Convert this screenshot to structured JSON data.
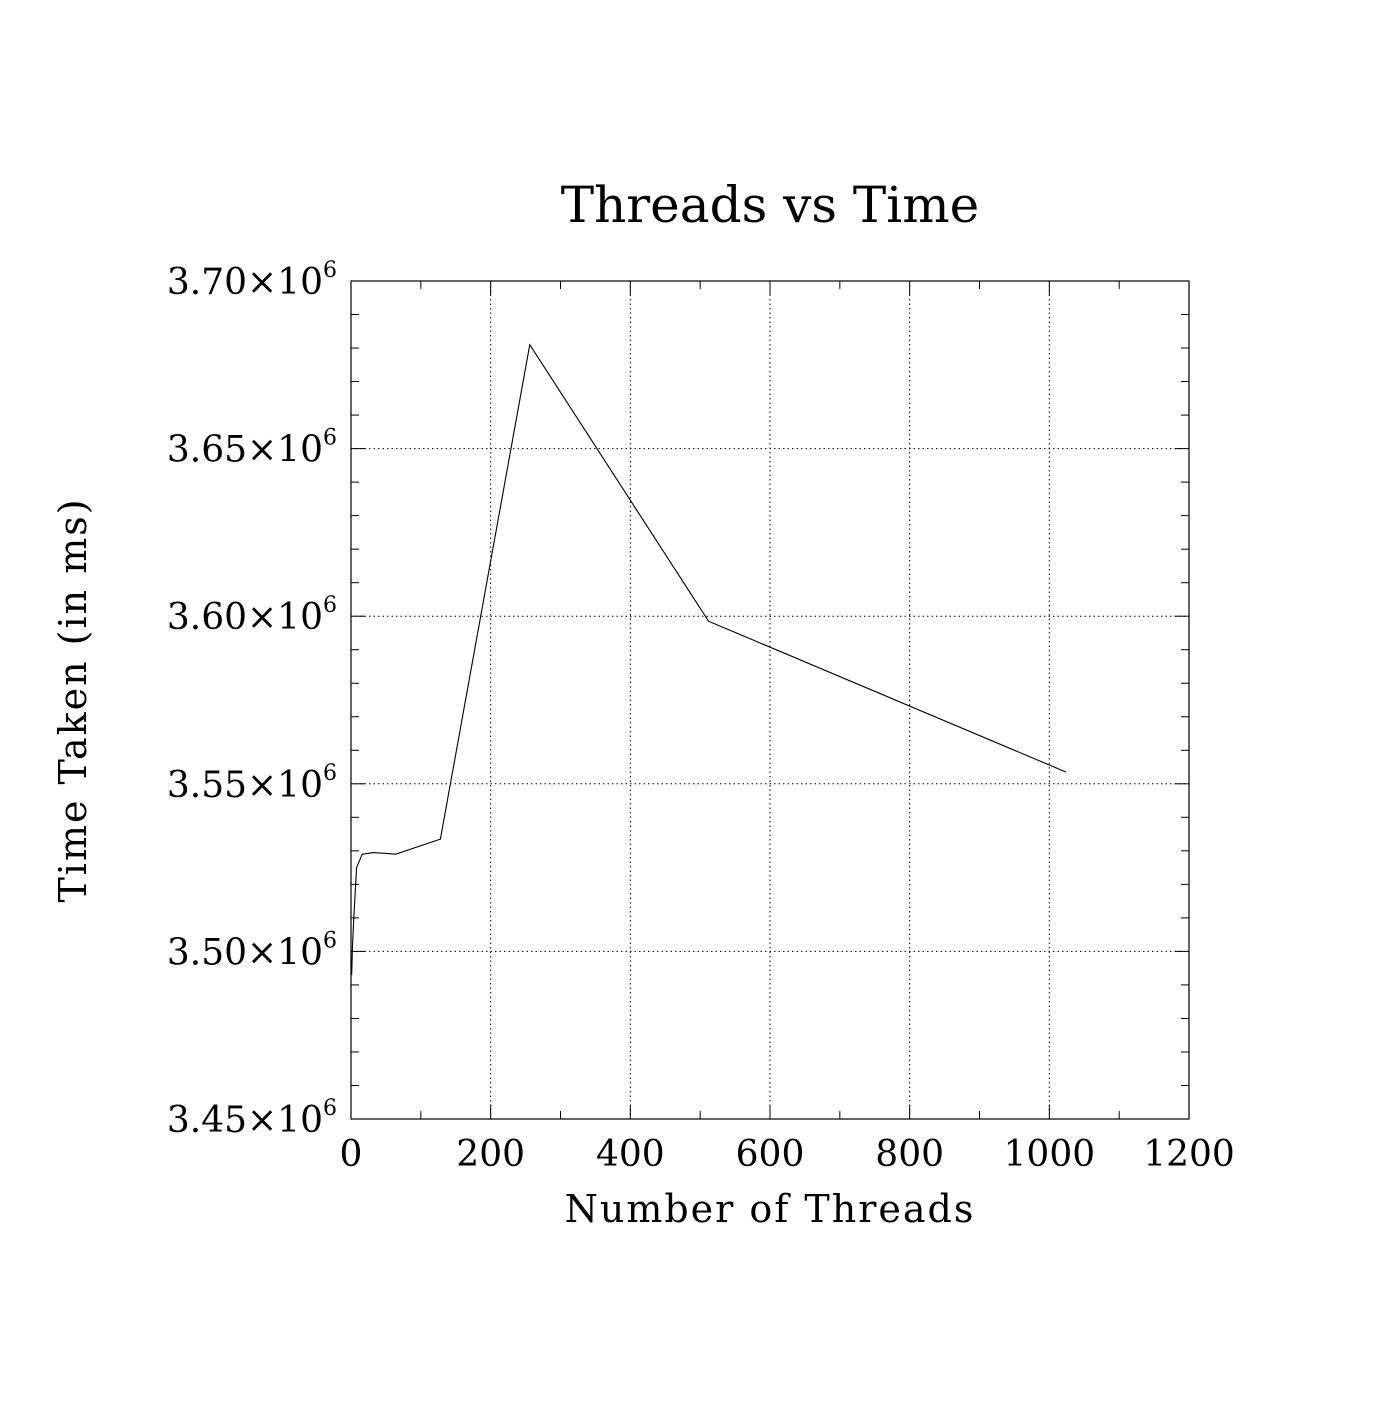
{
  "chart_data": {
    "type": "line",
    "title": "Threads vs Time",
    "xlabel": "Number of Threads",
    "ylabel": "Time Taken (in ms)",
    "xlim": [
      0,
      1200
    ],
    "ylim": [
      3450000,
      3700000
    ],
    "grid": true,
    "x_ticks": [
      0,
      200,
      400,
      600,
      800,
      1000,
      1200
    ],
    "x_tick_labels": [
      "0",
      "200",
      "400",
      "600",
      "800",
      "1000",
      "1200"
    ],
    "y_ticks": [
      3450000,
      3500000,
      3550000,
      3600000,
      3650000,
      3700000
    ],
    "y_tick_labels": [
      {
        "mantissa": "3.45",
        "times": "×10",
        "exp": "6"
      },
      {
        "mantissa": "3.50",
        "times": "×10",
        "exp": "6"
      },
      {
        "mantissa": "3.55",
        "times": "×10",
        "exp": "6"
      },
      {
        "mantissa": "3.60",
        "times": "×10",
        "exp": "6"
      },
      {
        "mantissa": "3.65",
        "times": "×10",
        "exp": "6"
      },
      {
        "mantissa": "3.70",
        "times": "×10",
        "exp": "6"
      }
    ],
    "series": [
      {
        "x": [
          1,
          2,
          4,
          8,
          16,
          32,
          64,
          128,
          256,
          512,
          1024
        ],
        "y": [
          3493000,
          3501000,
          3510000,
          3525000,
          3529000,
          3529500,
          3529000,
          3533500,
          3681000,
          3598500,
          3553500
        ]
      }
    ]
  }
}
